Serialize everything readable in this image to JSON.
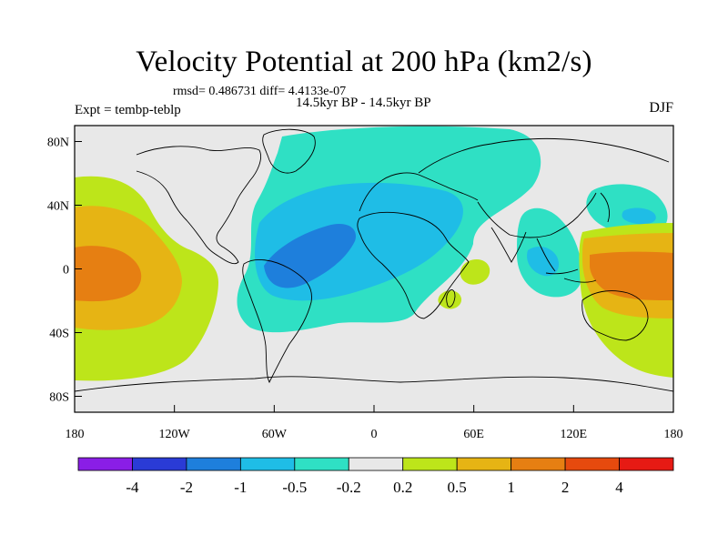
{
  "title": "Velocity Potential at 200 hPa (km2/s)",
  "stats_line": "rmsd= 0.486731 diff= 4.4133e-07",
  "left_label": "Expt = tembp-teblp",
  "center_label": "14.5kyr BP - 14.5kyr BP",
  "right_label": "DJF",
  "lat_ticks": [
    {
      "label": "80N",
      "lat": 80
    },
    {
      "label": "40N",
      "lat": 40
    },
    {
      "label": "0",
      "lat": 0
    },
    {
      "label": "40S",
      "lat": -40
    },
    {
      "label": "80S",
      "lat": -80
    }
  ],
  "lon_ticks": [
    {
      "label": "180",
      "lon": -180
    },
    {
      "label": "120W",
      "lon": -120
    },
    {
      "label": "60W",
      "lon": -60
    },
    {
      "label": "0",
      "lon": 0
    },
    {
      "label": "60E",
      "lon": 60
    },
    {
      "label": "120E",
      "lon": 120
    },
    {
      "label": "180",
      "lon": 180
    }
  ],
  "colorbar": {
    "colors": [
      "#8a1ee6",
      "#2a3bd6",
      "#1e7fdc",
      "#1fbde6",
      "#2fe0c4",
      "#e8e8e8",
      "#bde51a",
      "#e6b414",
      "#e67f12",
      "#e64a0e",
      "#e61a14"
    ],
    "labels": [
      "-4",
      "-2",
      "-1",
      "-0.5",
      "-0.2",
      "0.2",
      "0.5",
      "1",
      "2",
      "4"
    ]
  },
  "chart_data": {
    "type": "heatmap",
    "title": "Velocity Potential at 200 hPa (km2/s)",
    "projection": "cylindrical equidistant",
    "lon_range": [
      -180,
      180
    ],
    "lat_range": [
      -90,
      90
    ],
    "contour_levels": [
      -4,
      -2,
      -1,
      -0.5,
      -0.2,
      0.2,
      0.5,
      1,
      2,
      4
    ],
    "features": [
      {
        "name": "tropical Pacific positive",
        "center_lon": -165,
        "center_lat": 0,
        "value": 1.2
      },
      {
        "name": "Atlantic / South America negative",
        "center_lon": -45,
        "center_lat": 5,
        "value": -0.7
      },
      {
        "name": "North Atlantic / Eurasia weak negative",
        "center_lon": -5,
        "center_lat": 65,
        "value": -0.3
      },
      {
        "name": "Maritime Continent negative",
        "center_lon": 95,
        "center_lat": 0,
        "value": -0.4
      },
      {
        "name": "NW Pacific negative",
        "center_lon": 155,
        "center_lat": 35,
        "value": -0.5
      },
      {
        "name": "West Pacific positive",
        "center_lon": 165,
        "center_lat": 0,
        "value": 1.3
      },
      {
        "name": "Indian Ocean weak positive",
        "center_lon": 55,
        "center_lat": 0,
        "value": 0.3
      }
    ]
  }
}
